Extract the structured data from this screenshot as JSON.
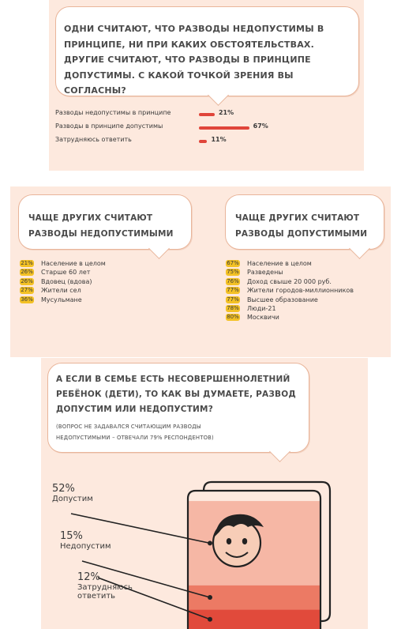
{
  "q1": {
    "question": "Одни считают, что разводы недопустимы в принципе,  ни при каких обстоятельствах. Другие считают, что разводы в принципе допустимы. С какой точкой зрения вы согласны?",
    "chart_data": {
      "type": "bar",
      "categories": [
        "Разводы недопустимы в принципе",
        "Разводы в принципе допустимы",
        "Затрудняюсь ответить"
      ],
      "values": [
        21,
        67,
        11
      ],
      "value_labels": [
        "21%",
        "67%",
        "11%"
      ],
      "xlim": [
        0,
        100
      ],
      "bar_color": "#e0453a"
    }
  },
  "left": {
    "heading_line1": "Чаще других считают",
    "heading_line2": "разводы недопустимыми",
    "chart_data": {
      "type": "table",
      "rows": [
        {
          "value": 21,
          "value_label": "21%",
          "label": "Население в целом"
        },
        {
          "value": 26,
          "value_label": "26%",
          "label": "Старше 60 лет"
        },
        {
          "value": 26,
          "value_label": "26%",
          "label": "Вдовец (вдова)"
        },
        {
          "value": 27,
          "value_label": "27%",
          "label": "Жители сел"
        },
        {
          "value": 36,
          "value_label": "36%",
          "label": "Мусульмане"
        }
      ]
    }
  },
  "right": {
    "heading_line1": "Чаще других считают",
    "heading_line2": "разводы допустимыми",
    "chart_data": {
      "type": "table",
      "rows": [
        {
          "value": 67,
          "value_label": "67%",
          "label": "Население в целом"
        },
        {
          "value": 75,
          "value_label": "75%",
          "label": "Разведены"
        },
        {
          "value": 76,
          "value_label": "76%",
          "label": "Доход свыше 20 000 руб."
        },
        {
          "value": 77,
          "value_label": "77%",
          "label": "Жители городов-миллионников"
        },
        {
          "value": 77,
          "value_label": "77%",
          "label": "Высшее образование"
        },
        {
          "value": 78,
          "value_label": "78%",
          "label": "Люди-21"
        },
        {
          "value": 80,
          "value_label": "80%",
          "label": "Москвичи"
        }
      ]
    }
  },
  "q3": {
    "line1": "А если в семье есть несовершеннолетний",
    "line2": "ребёнок (дети), то как вы думаете, развод",
    "line3": "допустим или недопустим?",
    "note_line1": "(вопрос не задавался считающим разводы",
    "note_line2": "недопустимыми – отвечали 79% респондентов)",
    "chart_data": {
      "type": "area",
      "categories": [
        "Допустим",
        "Недопустим",
        "Затрудняюсь ответить"
      ],
      "values": [
        52,
        15,
        12
      ],
      "value_labels": [
        "52%",
        "15%",
        "12%"
      ],
      "colors": [
        "#f6b7a5",
        "#ec7a64",
        "#e14a3b"
      ],
      "label_lines": [
        [
          "Допустим"
        ],
        [
          "Недопустим"
        ],
        [
          "Затрудняюсь",
          "ответить"
        ]
      ]
    }
  },
  "colors": {
    "panel_bg": "#fde9de",
    "accent_red": "#e0453a",
    "badge_yellow": "#f3c125",
    "bubble_border": "#e9b59a"
  }
}
